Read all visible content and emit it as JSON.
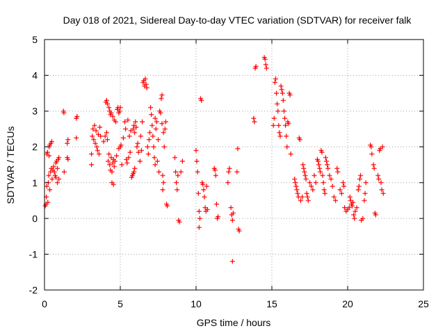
{
  "chart_data": {
    "type": "scatter",
    "title": "Day 018 of 2021, Sidereal Day-to-day VTEC variation (SDTVAR) for receiver falk",
    "xlabel": "GPS time / hours",
    "ylabel": "SDTVAR / TECUs",
    "xlim": [
      0,
      25
    ],
    "ylim": [
      -2,
      5
    ],
    "xticks": [
      0,
      5,
      10,
      15,
      20,
      25
    ],
    "yticks": [
      -2,
      -1,
      0,
      1,
      2,
      3,
      4,
      5
    ],
    "xtick_labels": [
      "0",
      "5",
      "10",
      "15",
      "20",
      "25"
    ],
    "ytick_labels": [
      "-2",
      "-1",
      "0",
      "1",
      "2",
      "3",
      "4",
      "5"
    ],
    "grid": true,
    "marker": "+",
    "color": "#ff0000",
    "series": [
      {
        "name": "SDTVAR",
        "points": [
          [
            0.05,
            0.35
          ],
          [
            0.1,
            0.4
          ],
          [
            0.12,
            0.6
          ],
          [
            0.15,
            0.9
          ],
          [
            0.15,
            1.8
          ],
          [
            0.2,
            1.85
          ],
          [
            0.22,
            0.45
          ],
          [
            0.25,
            1.0
          ],
          [
            0.28,
            1.2
          ],
          [
            0.3,
            1.75
          ],
          [
            0.3,
            2.0
          ],
          [
            0.35,
            0.8
          ],
          [
            0.35,
            2.05
          ],
          [
            0.4,
            1.3
          ],
          [
            0.42,
            2.1
          ],
          [
            0.45,
            1.4
          ],
          [
            0.48,
            2.15
          ],
          [
            0.5,
            1.1
          ],
          [
            0.55,
            1.35
          ],
          [
            0.6,
            1.45
          ],
          [
            0.65,
            1.3
          ],
          [
            0.7,
            1.2
          ],
          [
            0.75,
            1.15
          ],
          [
            0.75,
            1.55
          ],
          [
            0.8,
            1.6
          ],
          [
            0.85,
            1.0
          ],
          [
            0.85,
            1.4
          ],
          [
            0.9,
            1.65
          ],
          [
            0.95,
            1.7
          ],
          [
            0.95,
            1.1
          ],
          [
            1.25,
            3.0
          ],
          [
            1.28,
            2.95
          ],
          [
            1.3,
            1.3
          ],
          [
            1.5,
            1.7
          ],
          [
            1.55,
            1.65
          ],
          [
            1.5,
            2.1
          ],
          [
            1.55,
            2.2
          ],
          [
            2.1,
            2.8
          ],
          [
            2.15,
            2.85
          ],
          [
            2.1,
            2.25
          ],
          [
            3.1,
            1.5
          ],
          [
            3.1,
            1.8
          ],
          [
            3.15,
            2.3
          ],
          [
            3.2,
            2.5
          ],
          [
            3.25,
            2.2
          ],
          [
            3.3,
            2.6
          ],
          [
            3.35,
            2.1
          ],
          [
            3.4,
            2.45
          ],
          [
            3.45,
            2.0
          ],
          [
            3.5,
            1.9
          ],
          [
            3.55,
            2.35
          ],
          [
            3.6,
            1.8
          ],
          [
            3.65,
            2.55
          ],
          [
            3.7,
            2.3
          ],
          [
            3.9,
            2.15
          ],
          [
            4.0,
            2.3
          ],
          [
            4.05,
            3.25
          ],
          [
            4.1,
            3.3
          ],
          [
            4.15,
            3.2
          ],
          [
            4.1,
            2.4
          ],
          [
            4.15,
            2.2
          ],
          [
            4.2,
            1.6
          ],
          [
            4.25,
            1.8
          ],
          [
            4.25,
            3.1
          ],
          [
            4.3,
            1.5
          ],
          [
            4.3,
            3.0
          ],
          [
            4.35,
            1.35
          ],
          [
            4.35,
            2.9
          ],
          [
            4.4,
            1.7
          ],
          [
            4.4,
            2.95
          ],
          [
            4.45,
            1.3
          ],
          [
            4.45,
            1.0
          ],
          [
            4.5,
            1.55
          ],
          [
            4.5,
            2.85
          ],
          [
            4.55,
            0.95
          ],
          [
            4.55,
            1.65
          ],
          [
            4.6,
            2.75
          ],
          [
            4.6,
            1.45
          ],
          [
            4.65,
            1.6
          ],
          [
            4.7,
            2.7
          ],
          [
            4.75,
            1.75
          ],
          [
            4.8,
            3.05
          ],
          [
            4.85,
            3.1
          ],
          [
            4.9,
            1.95
          ],
          [
            4.9,
            2.95
          ],
          [
            4.95,
            3.0
          ],
          [
            5.0,
            2.0
          ],
          [
            5.0,
            3.1
          ],
          [
            5.05,
            2.05
          ],
          [
            5.1,
            1.5
          ],
          [
            5.2,
            2.25
          ],
          [
            5.3,
            2.7
          ],
          [
            5.35,
            2.5
          ],
          [
            5.4,
            1.65
          ],
          [
            5.45,
            1.55
          ],
          [
            5.5,
            2.75
          ],
          [
            5.55,
            1.7
          ],
          [
            5.6,
            2.3
          ],
          [
            5.65,
            1.85
          ],
          [
            5.7,
            2.45
          ],
          [
            5.75,
            1.15
          ],
          [
            5.8,
            1.2
          ],
          [
            5.85,
            1.25
          ],
          [
            5.9,
            1.3
          ],
          [
            5.95,
            1.4
          ],
          [
            5.85,
            2.5
          ],
          [
            5.9,
            2.6
          ],
          [
            5.95,
            2.4
          ],
          [
            6.0,
            2.7
          ],
          [
            6.05,
            2.55
          ],
          [
            6.1,
            2.0
          ],
          [
            6.15,
            2.1
          ],
          [
            6.2,
            1.85
          ],
          [
            6.3,
            1.6
          ],
          [
            6.35,
            2.3
          ],
          [
            6.4,
            1.9
          ],
          [
            6.45,
            2.7
          ],
          [
            6.5,
            3.8
          ],
          [
            6.55,
            3.85
          ],
          [
            6.6,
            3.7
          ],
          [
            6.65,
            3.9
          ],
          [
            6.7,
            3.75
          ],
          [
            6.75,
            3.65
          ],
          [
            6.8,
            2.0
          ],
          [
            6.85,
            1.8
          ],
          [
            6.9,
            2.2
          ],
          [
            6.95,
            2.4
          ],
          [
            7.0,
            3.1
          ],
          [
            7.05,
            2.9
          ],
          [
            7.1,
            2.6
          ],
          [
            7.15,
            2.3
          ],
          [
            7.2,
            2.0
          ],
          [
            7.25,
            1.7
          ],
          [
            7.3,
            1.5
          ],
          [
            7.3,
            2.8
          ],
          [
            7.35,
            2.5
          ],
          [
            7.4,
            2.7
          ],
          [
            7.45,
            1.6
          ],
          [
            7.5,
            2.2
          ],
          [
            7.55,
            1.3
          ],
          [
            7.6,
            3.0
          ],
          [
            7.65,
            2.95
          ],
          [
            7.7,
            3.35
          ],
          [
            7.75,
            3.45
          ],
          [
            7.75,
            2.65
          ],
          [
            7.8,
            1.2
          ],
          [
            7.8,
            0.8
          ],
          [
            7.85,
            1.0
          ],
          [
            7.85,
            2.4
          ],
          [
            7.9,
            2.0
          ],
          [
            7.95,
            2.5
          ],
          [
            8.0,
            2.7
          ],
          [
            8.05,
            0.4
          ],
          [
            8.1,
            0.35
          ],
          [
            8.6,
            1.7
          ],
          [
            8.65,
            1.3
          ],
          [
            8.7,
            1.0
          ],
          [
            8.75,
            0.8
          ],
          [
            8.8,
            1.2
          ],
          [
            8.85,
            -0.05
          ],
          [
            8.9,
            -0.1
          ],
          [
            9.0,
            1.3
          ],
          [
            9.1,
            1.6
          ],
          [
            10.0,
            1.9
          ],
          [
            10.05,
            1.6
          ],
          [
            10.1,
            1.3
          ],
          [
            10.15,
            0.7
          ],
          [
            10.2,
            0.2
          ],
          [
            10.2,
            -0.25
          ],
          [
            10.25,
            0.0
          ],
          [
            10.3,
            3.35
          ],
          [
            10.35,
            3.3
          ],
          [
            10.4,
            1.0
          ],
          [
            10.45,
            0.95
          ],
          [
            10.5,
            0.8
          ],
          [
            10.55,
            0.6
          ],
          [
            10.6,
            0.3
          ],
          [
            10.65,
            0.2
          ],
          [
            10.7,
            0.9
          ],
          [
            10.75,
            0.25
          ],
          [
            11.2,
            1.4
          ],
          [
            11.25,
            1.35
          ],
          [
            11.3,
            1.2
          ],
          [
            11.35,
            0.4
          ],
          [
            11.4,
            0.0
          ],
          [
            11.45,
            0.05
          ],
          [
            12.1,
            1.0
          ],
          [
            12.15,
            1.3
          ],
          [
            12.2,
            1.4
          ],
          [
            12.3,
            0.3
          ],
          [
            12.35,
            0.1
          ],
          [
            12.4,
            -0.05
          ],
          [
            12.4,
            -1.2
          ],
          [
            12.45,
            0.15
          ],
          [
            12.7,
            1.3
          ],
          [
            12.75,
            1.95
          ],
          [
            12.8,
            -0.3
          ],
          [
            12.85,
            -0.35
          ],
          [
            13.8,
            2.8
          ],
          [
            13.85,
            2.7
          ],
          [
            13.9,
            4.2
          ],
          [
            13.95,
            4.25
          ],
          [
            14.5,
            4.5
          ],
          [
            14.55,
            4.45
          ],
          [
            14.6,
            4.3
          ],
          [
            14.65,
            4.2
          ],
          [
            15.1,
            2.6
          ],
          [
            15.15,
            2.8
          ],
          [
            15.2,
            3.8
          ],
          [
            15.25,
            3.9
          ],
          [
            15.3,
            3.5
          ],
          [
            15.35,
            3.2
          ],
          [
            15.4,
            3.0
          ],
          [
            15.45,
            2.6
          ],
          [
            15.5,
            2.4
          ],
          [
            15.55,
            2.3
          ],
          [
            15.6,
            3.7
          ],
          [
            15.65,
            3.6
          ],
          [
            15.7,
            3.5
          ],
          [
            15.75,
            3.3
          ],
          [
            15.8,
            3.0
          ],
          [
            15.85,
            2.8
          ],
          [
            15.9,
            2.6
          ],
          [
            15.95,
            2.3
          ],
          [
            16.0,
            2.0
          ],
          [
            16.05,
            2.7
          ],
          [
            16.1,
            2.65
          ],
          [
            16.15,
            3.5
          ],
          [
            16.2,
            3.45
          ],
          [
            16.25,
            1.8
          ],
          [
            16.5,
            1.1
          ],
          [
            16.55,
            1.0
          ],
          [
            16.6,
            0.9
          ],
          [
            16.65,
            0.8
          ],
          [
            16.7,
            0.7
          ],
          [
            16.75,
            0.6
          ],
          [
            16.8,
            2.25
          ],
          [
            16.85,
            2.2
          ],
          [
            16.9,
            0.5
          ],
          [
            17.0,
            0.6
          ],
          [
            17.05,
            1.5
          ],
          [
            17.1,
            1.4
          ],
          [
            17.15,
            1.3
          ],
          [
            17.2,
            1.2
          ],
          [
            17.25,
            1.1
          ],
          [
            17.3,
            0.7
          ],
          [
            17.35,
            0.6
          ],
          [
            17.4,
            0.5
          ],
          [
            17.5,
            1.0
          ],
          [
            17.6,
            0.9
          ],
          [
            17.7,
            0.8
          ],
          [
            17.8,
            1.2
          ],
          [
            17.9,
            1.0
          ],
          [
            18.0,
            1.65
          ],
          [
            18.05,
            1.6
          ],
          [
            18.1,
            1.5
          ],
          [
            18.15,
            1.4
          ],
          [
            18.2,
            1.3
          ],
          [
            18.25,
            1.9
          ],
          [
            18.3,
            1.85
          ],
          [
            18.35,
            1.2
          ],
          [
            18.4,
            1.0
          ],
          [
            18.45,
            0.8
          ],
          [
            18.5,
            0.7
          ],
          [
            18.55,
            1.7
          ],
          [
            18.6,
            1.6
          ],
          [
            18.65,
            1.5
          ],
          [
            18.7,
            1.4
          ],
          [
            18.8,
            1.2
          ],
          [
            18.9,
            1.1
          ],
          [
            19.0,
            0.9
          ],
          [
            19.1,
            0.6
          ],
          [
            19.2,
            0.5
          ],
          [
            19.3,
            1.4
          ],
          [
            19.35,
            1.3
          ],
          [
            19.5,
            0.8
          ],
          [
            19.6,
            0.7
          ],
          [
            19.7,
            1.0
          ],
          [
            19.75,
            0.9
          ],
          [
            19.8,
            0.3
          ],
          [
            19.9,
            0.2
          ],
          [
            20.0,
            0.25
          ],
          [
            20.1,
            0.3
          ],
          [
            20.15,
            0.6
          ],
          [
            20.2,
            0.5
          ],
          [
            20.25,
            0.4
          ],
          [
            20.3,
            0.35
          ],
          [
            20.35,
            0.45
          ],
          [
            20.4,
            0.1
          ],
          [
            20.45,
            0.0
          ],
          [
            20.5,
            0.2
          ],
          [
            20.6,
            0.3
          ],
          [
            20.7,
            0.8
          ],
          [
            20.75,
            0.9
          ],
          [
            20.8,
            1.1
          ],
          [
            20.85,
            1.2
          ],
          [
            20.9,
            -0.05
          ],
          [
            21.0,
            0.0
          ],
          [
            21.1,
            0.5
          ],
          [
            21.15,
            0.7
          ],
          [
            21.2,
            1.0
          ],
          [
            21.5,
            2.05
          ],
          [
            21.55,
            2.0
          ],
          [
            21.6,
            1.8
          ],
          [
            21.7,
            1.5
          ],
          [
            21.75,
            1.4
          ],
          [
            21.8,
            0.15
          ],
          [
            21.85,
            0.1
          ],
          [
            22.0,
            1.2
          ],
          [
            22.05,
            1.1
          ],
          [
            22.1,
            1.9
          ],
          [
            22.15,
            1.95
          ],
          [
            22.2,
            1.0
          ],
          [
            22.25,
            0.8
          ],
          [
            22.3,
            2.0
          ],
          [
            22.35,
            0.7
          ]
        ]
      }
    ]
  }
}
